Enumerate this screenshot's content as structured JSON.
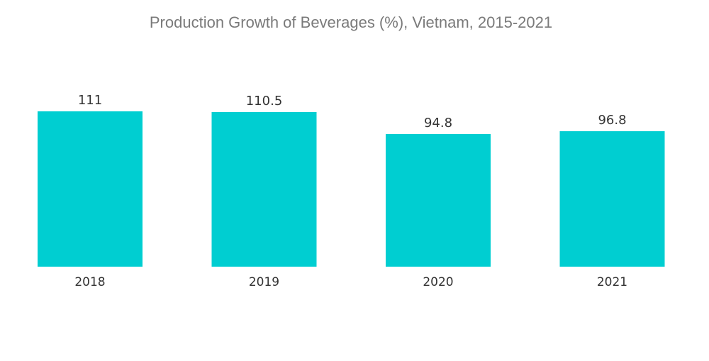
{
  "chart_data": {
    "type": "bar",
    "title": "Production Growth of Beverages (%), Vietnam, 2015-2021",
    "xlabel": "",
    "ylabel": "",
    "categories": [
      "2018",
      "2019",
      "2020",
      "2021"
    ],
    "values": [
      111,
      110.5,
      94.8,
      96.8
    ],
    "value_labels": [
      "111",
      "110.5",
      "94.8",
      "96.8"
    ],
    "ylim": [
      0,
      111
    ],
    "grid": false,
    "legend": "none",
    "bar_color": "#00CED1"
  }
}
